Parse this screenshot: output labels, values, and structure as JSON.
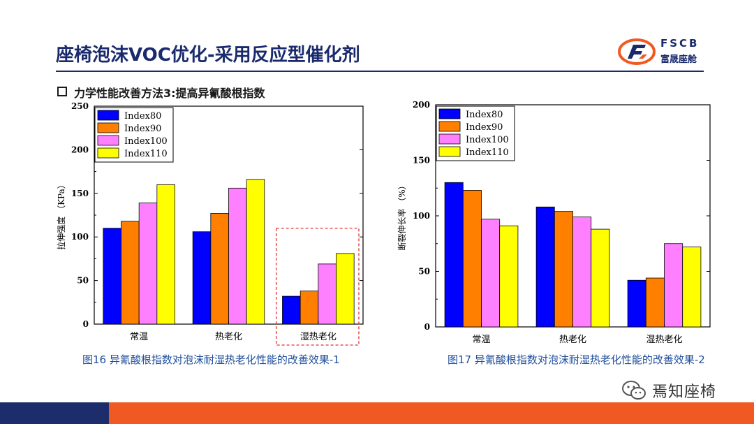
{
  "header": {
    "title": "座椅泡沫VOC优化-采用反应型催化剂",
    "logo_abbr": "FSCB",
    "logo_name": "富晟座舱"
  },
  "section": {
    "subtitle": "力学性能改善方法3:提高异氰酸根指数"
  },
  "charts": {
    "left_caption": "图16 异氰酸根指数对泡沫耐湿热老化性能的改善效果-1",
    "right_caption": "图17 异氰酸根指数对泡沫耐湿热老化性能的改善效果-2"
  },
  "watermark": {
    "text": "焉知座椅"
  },
  "colors": {
    "title": "#1a2a6c",
    "caption": "#1f4e9c",
    "footer_blue": "#1d2c6b",
    "footer_orange": "#f05a22",
    "highlight_box": "#e0333a"
  },
  "chart_data": [
    {
      "type": "bar",
      "categories": [
        "常温",
        "热老化",
        "湿热老化"
      ],
      "series": [
        {
          "name": "Index80",
          "color": "#0000ff",
          "values": [
            110,
            106,
            32
          ]
        },
        {
          "name": "Index90",
          "color": "#ff7f00",
          "values": [
            118,
            127,
            38
          ]
        },
        {
          "name": "Index100",
          "color": "#ff80ff",
          "values": [
            139,
            156,
            69
          ]
        },
        {
          "name": "Index110",
          "color": "#ffff00",
          "values": [
            160,
            166,
            81
          ]
        }
      ],
      "ylabel": "拉伸强度 （KPa）",
      "ylim": [
        0,
        250
      ],
      "yticks": [
        0,
        50,
        100,
        150,
        200,
        250
      ],
      "legend": "top-left",
      "highlight_category": "湿热老化"
    },
    {
      "type": "bar",
      "categories": [
        "常温",
        "热老化",
        "湿热老化"
      ],
      "series": [
        {
          "name": "Index80",
          "color": "#0000ff",
          "values": [
            130,
            108,
            42
          ]
        },
        {
          "name": "Index90",
          "color": "#ff7f00",
          "values": [
            123,
            104,
            44
          ]
        },
        {
          "name": "Index100",
          "color": "#ff80ff",
          "values": [
            97,
            99,
            75
          ]
        },
        {
          "name": "Index110",
          "color": "#ffff00",
          "values": [
            91,
            88,
            72
          ]
        }
      ],
      "ylabel": "断裂伸长率 （%）",
      "ylim": [
        0,
        200
      ],
      "yticks": [
        0,
        50,
        100,
        150,
        200
      ],
      "legend": "top-left"
    }
  ]
}
